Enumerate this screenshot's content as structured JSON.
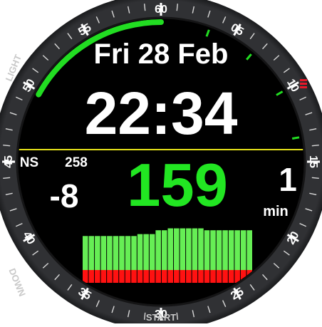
{
  "colors": {
    "bezel": "#3a3b3e",
    "bezel_dark": "#1f2022",
    "face": "#000000",
    "accent_green": "#22dd22",
    "chart_green": "#66ee55",
    "chart_red": "#ff1111",
    "ring_yellow": "#e6e21a",
    "text": "#ffffff",
    "battery_red": "#e8182a"
  },
  "bezel": {
    "numbers": [
      "60",
      "05",
      "10",
      "15",
      "20",
      "25",
      "30",
      "35",
      "40",
      "45",
      "50",
      "55"
    ],
    "buttons": {
      "light": "LIGHT",
      "down": "DOWN",
      "start": "START"
    }
  },
  "watch": {
    "date": "Fri 28 Feb",
    "time": "22:34",
    "seconds_progress": 0.83
  },
  "metrics": {
    "left_label": "NS",
    "left_top_value": "258",
    "left_value": "-8",
    "main_value": "159",
    "right_value": "1",
    "right_unit": "min"
  },
  "histogram": {
    "green_levels": [
      0.53,
      0.53,
      0.53,
      0.53,
      0.53,
      0.53,
      0.53,
      0.53,
      0.53,
      0.56,
      0.56,
      0.56,
      0.62,
      0.62,
      0.65,
      0.65,
      0.65,
      0.65,
      0.65,
      0.65,
      0.62,
      0.62,
      0.62,
      0.62,
      0.62,
      0.62,
      0.62,
      0.62
    ],
    "red_count": 28
  }
}
